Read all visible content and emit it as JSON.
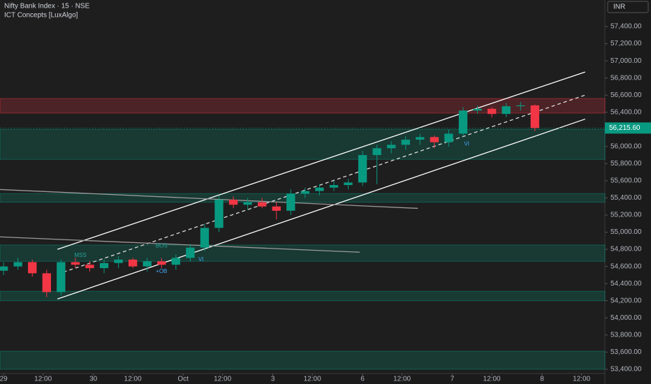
{
  "chart_data": {
    "type": "candlestick",
    "title": "Nifty Bank Index · 15 · NSE",
    "subtitle": "ICT Concepts [LuxAlgo]",
    "currency": "INR",
    "last_price": {
      "value": 56215.6,
      "label": "56,215.60"
    },
    "up_color": "#089981",
    "down_color": "#f23645",
    "xlim": [
      -1,
      167.5
    ],
    "ylim": [
      53350,
      57710
    ],
    "xticks": [
      {
        "value": 0,
        "label": "29"
      },
      {
        "value": 11,
        "label": "12:00"
      },
      {
        "value": 25,
        "label": "30"
      },
      {
        "value": 36,
        "label": "12:00"
      },
      {
        "value": 50,
        "label": "Oct"
      },
      {
        "value": 61,
        "label": "12:00"
      },
      {
        "value": 75,
        "label": "3"
      },
      {
        "value": 86,
        "label": "12:00"
      },
      {
        "value": 100,
        "label": "6"
      },
      {
        "value": 111,
        "label": "12:00"
      },
      {
        "value": 125,
        "label": "7"
      },
      {
        "value": 136,
        "label": "12:00"
      },
      {
        "value": 150,
        "label": "8"
      },
      {
        "value": 161,
        "label": "12:00"
      }
    ],
    "yticks": [
      {
        "value": 53400,
        "label": "53,400.00"
      },
      {
        "value": 53600,
        "label": "53,600.00"
      },
      {
        "value": 53800,
        "label": "53,800.00"
      },
      {
        "value": 54000,
        "label": "54,000.00"
      },
      {
        "value": 54200,
        "label": "54,200.00"
      },
      {
        "value": 54400,
        "label": "54,400.00"
      },
      {
        "value": 54600,
        "label": "54,600.00"
      },
      {
        "value": 54800,
        "label": "54,800.00"
      },
      {
        "value": 55000,
        "label": "55,000.00"
      },
      {
        "value": 55200,
        "label": "55,200.00"
      },
      {
        "value": 55400,
        "label": "55,400.00"
      },
      {
        "value": 55600,
        "label": "55,600.00"
      },
      {
        "value": 55800,
        "label": "55,800.00"
      },
      {
        "value": 56000,
        "label": "56,000.00"
      },
      {
        "value": 56400,
        "label": "56,400.00"
      },
      {
        "value": 56600,
        "label": "56,600.00"
      },
      {
        "value": 56800,
        "label": "56,800.00"
      },
      {
        "value": 57000,
        "label": "57,000.00"
      },
      {
        "value": 57200,
        "label": "57,200.00"
      },
      {
        "value": 57400,
        "label": "57,400.00"
      }
    ],
    "x": [
      0,
      4,
      8,
      12,
      16,
      20,
      24,
      28,
      32,
      36,
      40,
      44,
      48,
      52,
      56,
      60,
      64,
      68,
      72,
      76,
      80,
      84,
      88,
      92,
      96,
      100,
      104,
      108,
      112,
      116,
      120,
      124,
      128,
      132,
      136,
      140,
      144,
      148
    ],
    "open": [
      54550,
      54600,
      54650,
      54520,
      54300,
      54650,
      54620,
      54580,
      54640,
      54680,
      54600,
      54660,
      54620,
      54700,
      54820,
      55050,
      55380,
      55320,
      55350,
      55300,
      55250,
      55450,
      55480,
      55520,
      55550,
      55580,
      55900,
      55980,
      56020,
      56080,
      56110,
      56050,
      56150,
      56420,
      56440,
      56380,
      56470,
      56480
    ],
    "high": [
      54650,
      54700,
      54680,
      54560,
      54680,
      54700,
      54660,
      54680,
      54720,
      54700,
      54700,
      54700,
      54740,
      54860,
      55100,
      55420,
      55420,
      55400,
      55400,
      55350,
      55500,
      55520,
      55560,
      55600,
      55620,
      55950,
      56020,
      56060,
      56120,
      56150,
      56130,
      56200,
      56460,
      56480,
      56460,
      56510,
      56520,
      56490
    ],
    "low": [
      54500,
      54560,
      54480,
      54240,
      54260,
      54580,
      54540,
      54520,
      54580,
      54580,
      54540,
      54580,
      54560,
      54660,
      54780,
      55000,
      55280,
      55260,
      55280,
      55150,
      55200,
      55400,
      55430,
      55480,
      55500,
      55540,
      55560,
      55920,
      55960,
      56020,
      55980,
      56000,
      56120,
      56380,
      56340,
      56340,
      56420,
      56180
    ],
    "close": [
      54600,
      54650,
      54520,
      54300,
      54650,
      54620,
      54580,
      54640,
      54680,
      54600,
      54660,
      54620,
      54700,
      54820,
      55050,
      55380,
      55320,
      55350,
      55300,
      55250,
      55450,
      55480,
      55520,
      55550,
      55580,
      55900,
      55980,
      56020,
      56080,
      56110,
      56050,
      56150,
      56420,
      56440,
      56380,
      56470,
      56480,
      56215
    ],
    "zones": [
      {
        "low": 56390,
        "high": 56560,
        "color": "#f23645"
      },
      {
        "low": 55850,
        "high": 56200,
        "color": "#089981"
      },
      {
        "low": 55350,
        "high": 55450,
        "color": "#089981"
      },
      {
        "low": 54660,
        "high": 54850,
        "color": "#089981"
      },
      {
        "low": 54200,
        "high": 54310,
        "color": "#089981"
      },
      {
        "low": 53400,
        "high": 53610,
        "color": "#089981"
      }
    ],
    "lines": [
      {
        "x": [
          15,
          162
        ],
        "y": [
          54800,
          56870
        ],
        "color": "#ffffff",
        "dash": false
      },
      {
        "x": [
          15,
          162
        ],
        "y": [
          54510,
          56600
        ],
        "color": "#dddddd",
        "dash": true
      },
      {
        "x": [
          15,
          162
        ],
        "y": [
          54220,
          56320
        ],
        "color": "#ffffff",
        "dash": false
      },
      {
        "x": [
          -1,
          115.4
        ],
        "y": [
          55498,
          55278
        ],
        "color": "#9a9a9a",
        "dash": false
      },
      {
        "x": [
          -1,
          99.2
        ],
        "y": [
          54945,
          54766
        ],
        "color": "#9a9a9a",
        "dash": false
      }
    ],
    "annotations": [
      {
        "text": "MSS",
        "x": 21.4,
        "y": 54730,
        "color": "#26a69a"
      },
      {
        "text": "BOS",
        "x": 44,
        "y": 54840,
        "color": "#26a69a"
      },
      {
        "text": "VI",
        "x": 55,
        "y": 54680,
        "color": "#42a5f5"
      },
      {
        "text": "+OB",
        "x": 44,
        "y": 54540,
        "color": "#42a5f5"
      },
      {
        "text": "VI",
        "x": 129,
        "y": 56030,
        "color": "#42a5f5"
      }
    ]
  }
}
